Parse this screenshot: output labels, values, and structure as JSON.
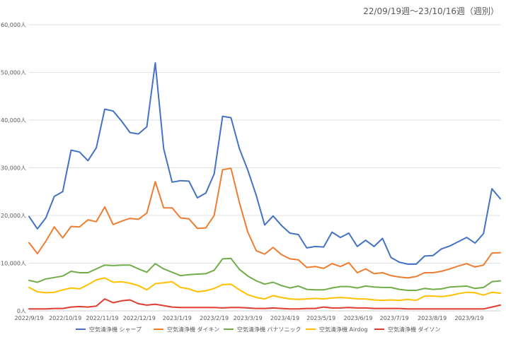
{
  "chart_data": {
    "type": "line",
    "title": "22/09/19週～23/10/16週（週別）",
    "xlabel": "",
    "ylabel": "",
    "ylim": [
      0,
      60000
    ],
    "y_ticks": [
      "0人",
      "10,000人",
      "20,000人",
      "30,000人",
      "40,000人",
      "50,000人",
      "60,000人"
    ],
    "y_tick_values": [
      0,
      10000,
      20000,
      30000,
      40000,
      50000,
      60000
    ],
    "x_tick_labels": [
      "2022/9/19",
      "2022/10/19",
      "2022/11/19",
      "2022/12/19",
      "2023/1/19",
      "2023/2/19",
      "2023/3/19",
      "2023/4/19",
      "2023/5/19",
      "2023/6/19",
      "2023/7/19",
      "2023/8/19",
      "2023/9/19"
    ],
    "x_tick_week_index": [
      0,
      4.3,
      8.7,
      13.1,
      17.6,
      22.0,
      26.0,
      30.4,
      34.7,
      39.1,
      43.4,
      47.9,
      52.3
    ],
    "grid": true,
    "legend_position": "bottom",
    "series": [
      {
        "name": "空気清浄機 シャープ",
        "color": "#4472C4",
        "values": [
          19800,
          17200,
          19500,
          24000,
          25000,
          33700,
          33300,
          31500,
          34200,
          42300,
          41900,
          39800,
          37400,
          37100,
          38600,
          52000,
          34000,
          27000,
          27300,
          27200,
          23700,
          24700,
          28700,
          40800,
          40500,
          34000,
          29500,
          24200,
          18000,
          19900,
          17900,
          16300,
          16000,
          13200,
          13500,
          13400,
          16500,
          15400,
          16300,
          13500,
          14800,
          13500,
          15200,
          11200,
          10200,
          9800,
          9800,
          11500,
          11600,
          13000,
          13600,
          14500,
          15400,
          14200,
          16200,
          25600,
          23500
        ]
      },
      {
        "name": "空気清浄機 ダイキン",
        "color": "#ED7D31",
        "values": [
          14300,
          12000,
          14600,
          17600,
          15300,
          17700,
          17600,
          19100,
          18700,
          21800,
          18100,
          18800,
          19400,
          19200,
          20500,
          27100,
          21600,
          21600,
          19500,
          19300,
          17300,
          17400,
          20000,
          29600,
          29900,
          22700,
          16500,
          12600,
          11900,
          13300,
          11800,
          10900,
          10700,
          9100,
          9300,
          8900,
          9900,
          9300,
          10100,
          8000,
          8800,
          7800,
          8000,
          7400,
          7100,
          6900,
          7200,
          8000,
          8000,
          8300,
          8800,
          9400,
          9900,
          9200,
          9600,
          12100,
          12200
        ]
      },
      {
        "name": "空気清浄機 パナソニック",
        "color": "#70AD47",
        "values": [
          6400,
          6000,
          6700,
          7000,
          7300,
          8300,
          8000,
          8000,
          8800,
          9600,
          9500,
          9600,
          9600,
          8800,
          8100,
          9900,
          8800,
          8100,
          7400,
          7600,
          7700,
          7800,
          8500,
          10900,
          11000,
          8700,
          7300,
          6300,
          5600,
          6000,
          5300,
          4800,
          5200,
          4500,
          4400,
          4400,
          4800,
          5100,
          5100,
          4800,
          5200,
          5000,
          4900,
          4900,
          4500,
          4300,
          4300,
          4700,
          4500,
          4600,
          5000,
          5100,
          5200,
          4700,
          4900,
          6100,
          6300
        ]
      },
      {
        "name": "空気清浄機 Airdog",
        "color": "#FFC000",
        "values": [
          4900,
          4000,
          3800,
          3900,
          4400,
          4800,
          4600,
          5500,
          6500,
          6900,
          6000,
          6100,
          5800,
          5300,
          4400,
          5700,
          5900,
          6100,
          4900,
          4600,
          4000,
          4200,
          4700,
          5500,
          5600,
          4400,
          3400,
          2800,
          2500,
          3200,
          2800,
          2500,
          2400,
          2500,
          2600,
          2500,
          2700,
          2800,
          2700,
          2500,
          2500,
          2300,
          2200,
          2300,
          2200,
          2400,
          2200,
          3100,
          3100,
          3000,
          3200,
          3600,
          3900,
          3800,
          3300,
          3900,
          3700
        ]
      },
      {
        "name": "空気清浄機 ダイソン",
        "color": "#E03C31",
        "values": [
          400,
          400,
          400,
          500,
          500,
          800,
          900,
          800,
          1000,
          2500,
          1700,
          2100,
          2300,
          1500,
          1200,
          1400,
          1100,
          800,
          700,
          700,
          700,
          700,
          700,
          600,
          700,
          700,
          600,
          500,
          500,
          600,
          500,
          400,
          400,
          500,
          500,
          800,
          600,
          600,
          700,
          600,
          600,
          500,
          500,
          500,
          500,
          400,
          400,
          400,
          400,
          400,
          400,
          400,
          400,
          400,
          400,
          800,
          1200
        ]
      }
    ]
  }
}
